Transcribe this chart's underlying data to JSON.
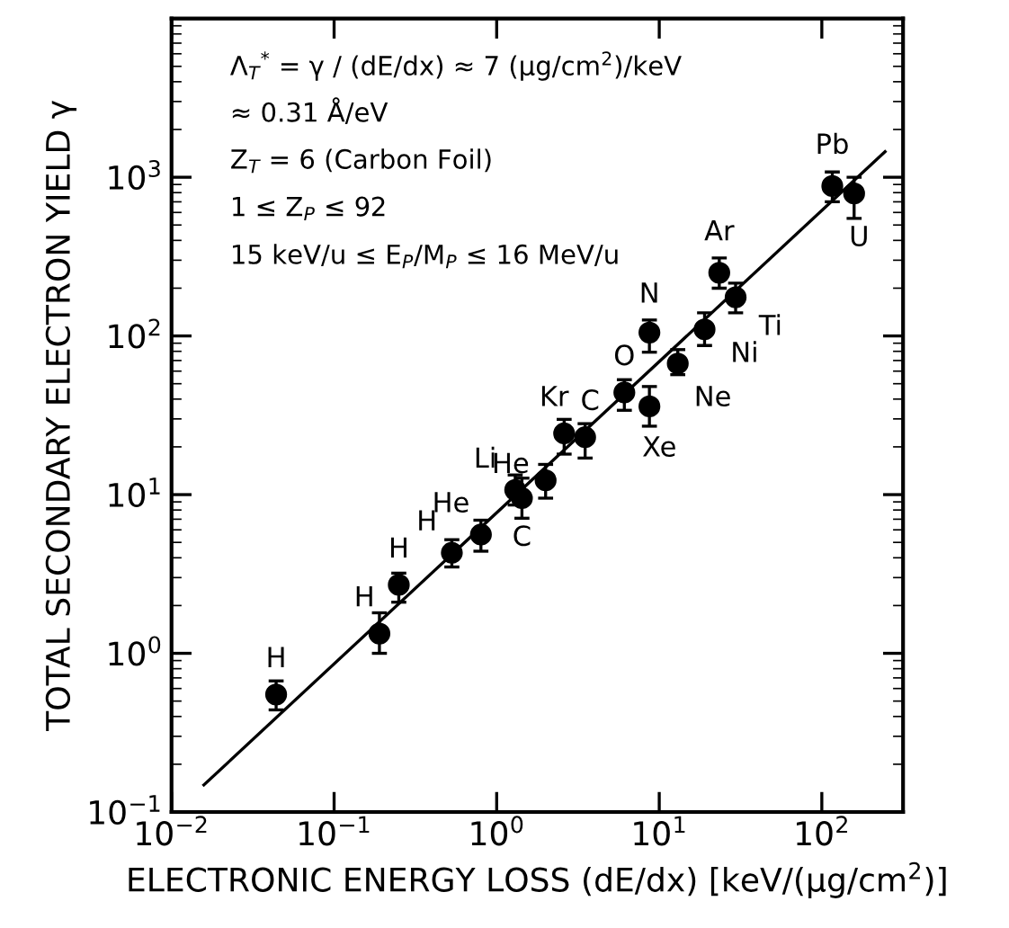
{
  "chart_data": {
    "type": "scatter",
    "xlabel": "ELECTRONIC ENERGY LOSS (dE/dx) [keV/(µg/cm$^{2}$)]",
    "ylabel": "TOTAL SECONDARY ELECTRON YIELD γ",
    "log": "xy",
    "xlim": [
      0.01,
      316
    ],
    "ylim": [
      0.1,
      10000
    ],
    "xticks": [
      {
        "value": 0.01,
        "label": "10$^{−2}$"
      },
      {
        "value": 0.1,
        "label": "10$^{−1}$"
      },
      {
        "value": 1,
        "label": "10$^{0}$"
      },
      {
        "value": 10,
        "label": "10$^{1}$"
      },
      {
        "value": 100,
        "label": "10$^{2}$"
      }
    ],
    "yticks": [
      {
        "value": 0.1,
        "label": "10$^{−1}$"
      },
      {
        "value": 1,
        "label": "10$^{0}$"
      },
      {
        "value": 10,
        "label": "10$^{1}$"
      },
      {
        "value": 100,
        "label": "10$^{2}$"
      },
      {
        "value": 1000,
        "label": "10$^{3}$"
      }
    ],
    "grid": false,
    "legend": false,
    "series": [
      {
        "color": "#000000",
        "marker": "circle",
        "x": [
          0.044,
          0.19,
          0.25,
          0.53,
          0.8,
          1.3,
          1.43,
          2.0,
          2.6,
          3.5,
          6.1,
          8.7,
          8.7,
          13,
          19,
          23.4,
          29.5,
          116,
          158
        ],
        "values": [
          0.55,
          1.33,
          2.7,
          4.3,
          5.6,
          10.7,
          9.5,
          12.3,
          24.3,
          23,
          44,
          36,
          105,
          67,
          110,
          250,
          175,
          880,
          790
        ],
        "value_labels": [
          "H",
          "H",
          "H",
          "H",
          "He",
          "Li",
          "C",
          "He",
          "Kr",
          "C",
          "O",
          "Xe",
          "N",
          "Ne",
          "Ni",
          "Ar",
          "Ti",
          "Pb",
          "U"
        ],
        "errors": [
          [
            0.44,
            0.67
          ],
          [
            1.0,
            1.8
          ],
          [
            2.1,
            3.2
          ],
          [
            3.5,
            5.2
          ],
          [
            4.4,
            6.9
          ],
          [
            8.6,
            13.3
          ],
          [
            7.1,
            12.7
          ],
          [
            9.5,
            15.5
          ],
          [
            18,
            29.8
          ],
          [
            17,
            28
          ],
          [
            34,
            53
          ],
          [
            27,
            48
          ],
          [
            79,
            126
          ],
          [
            57,
            82
          ],
          [
            87,
            140
          ],
          [
            200,
            310
          ],
          [
            140,
            215
          ],
          [
            700,
            1080
          ],
          [
            550,
            1000
          ]
        ]
      },
      {
        "type": "line",
        "color": "#000000",
        "marker": "none",
        "x": [
          0.0158,
          245
        ],
        "values": [
          0.148,
          1450
        ],
        "line_style": "solid"
      }
    ],
    "annotations": [
      "Λ$_{T}$$^{*}$ = γ / (dE/dx) ≈ 7 (µg/cm$^{2}$)/keV",
      "≈ 0.31 Å/eV",
      "Z$_{T}$ = 6 (Carbon Foil)",
      "1 ≤ Z$_{P}$ ≤ 92",
      "15 keV/u ≤ E$_{P}$/M$_{P}$ ≤ 16 MeV/u"
    ]
  }
}
